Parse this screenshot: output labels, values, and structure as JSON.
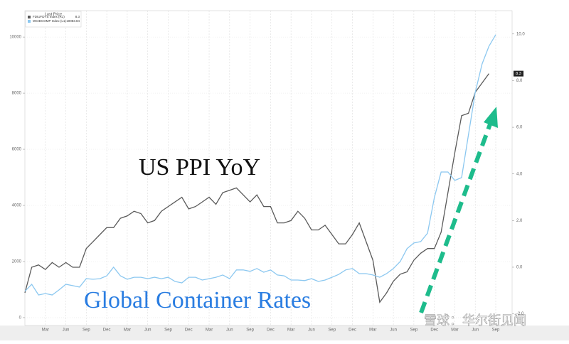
{
  "chart_data": {
    "type": "line",
    "legend_title": "Last Price",
    "annotations": [
      "US PPI YoY",
      "Global Container Rates"
    ],
    "watermark": "雪球：华尔街见闻",
    "categories": [
      null,
      null,
      null,
      "Mar",
      null,
      null,
      "Jun",
      null,
      null,
      "Sep",
      null,
      null,
      "Dec",
      null,
      null,
      "Mar",
      null,
      null,
      "Jun",
      null,
      null,
      "Sep",
      null,
      null,
      "Dec",
      null,
      null,
      "Mar",
      null,
      null,
      "Jun",
      null,
      null,
      "Sep",
      null,
      null,
      "Dec",
      null,
      null,
      "Mar",
      null,
      null,
      "Jun",
      null,
      null,
      "Sep",
      null,
      null,
      "Dec",
      null,
      null,
      "Mar",
      null,
      null,
      "Jun",
      null,
      null,
      "Sep",
      null,
      null,
      "Dec",
      null,
      null,
      "Mar",
      null,
      null,
      "Jun",
      null,
      null,
      "Sep"
    ],
    "series": [
      {
        "name": "FDIUFDYS Index (R1)",
        "color": "#5a5a5a",
        "axis": "y2",
        "values": [
          -1.1,
          0,
          0.1,
          -0.1,
          0.2,
          0,
          0.2,
          0,
          0,
          0.8,
          1.1,
          1.4,
          1.7,
          1.7,
          2.1,
          2.2,
          2.4,
          2.3,
          1.9,
          2.0,
          2.4,
          2.6,
          2.8,
          3.0,
          2.5,
          2.6,
          2.8,
          3.0,
          2.7,
          3.2,
          3.3,
          3.4,
          3.1,
          2.8,
          3.1,
          2.6,
          2.6,
          1.9,
          1.9,
          2.0,
          2.4,
          2.1,
          1.6,
          1.6,
          1.8,
          1.4,
          1.0,
          1.0,
          1.4,
          1.9,
          1.1,
          0.3,
          -1.5,
          -1.1,
          -0.6,
          -0.3,
          -0.2,
          0.3,
          0.6,
          0.8,
          0.8,
          1.5,
          3.2,
          4.9,
          6.5,
          6.6,
          7.5,
          7.9,
          8.3,
          null
        ]
      },
      {
        "name": "WCIDCOMP Index (L1)",
        "color": "#8cc8f0",
        "axis": "y",
        "values": [
          940,
          1190,
          810,
          860,
          810,
          990,
          1190,
          1140,
          1090,
          1390,
          1370,
          1390,
          1490,
          1800,
          1490,
          1370,
          1440,
          1440,
          1390,
          1440,
          1390,
          1440,
          1290,
          1240,
          1440,
          1440,
          1340,
          1390,
          1440,
          1520,
          1390,
          1700,
          1700,
          1650,
          1750,
          1620,
          1700,
          1520,
          1490,
          1340,
          1340,
          1320,
          1390,
          1290,
          1340,
          1440,
          1540,
          1700,
          1750,
          1570,
          1570,
          1520,
          1440,
          1570,
          1750,
          2000,
          2460,
          2660,
          2710,
          3010,
          4280,
          5190,
          5190,
          4890,
          4990,
          6510,
          8030,
          9040,
          9670,
          10083.84
        ]
      }
    ],
    "ylim": [
      -280,
      10940
    ],
    "yticks": [
      0,
      2000,
      4000,
      6000,
      8000,
      10000
    ],
    "y2lim": [
      -2.5,
      11
    ],
    "y2ticks": [
      {
        "value": -2,
        "label": "-2.0"
      },
      {
        "value": 0,
        "label": "0.0"
      },
      {
        "value": 2,
        "label": "2.0"
      },
      {
        "value": 4,
        "label": "4.0"
      },
      {
        "value": 6,
        "label": "6.0"
      },
      {
        "value": 8,
        "label": "8.0"
      },
      {
        "value": 10,
        "label": "10.0"
      }
    ],
    "grid": true
  }
}
